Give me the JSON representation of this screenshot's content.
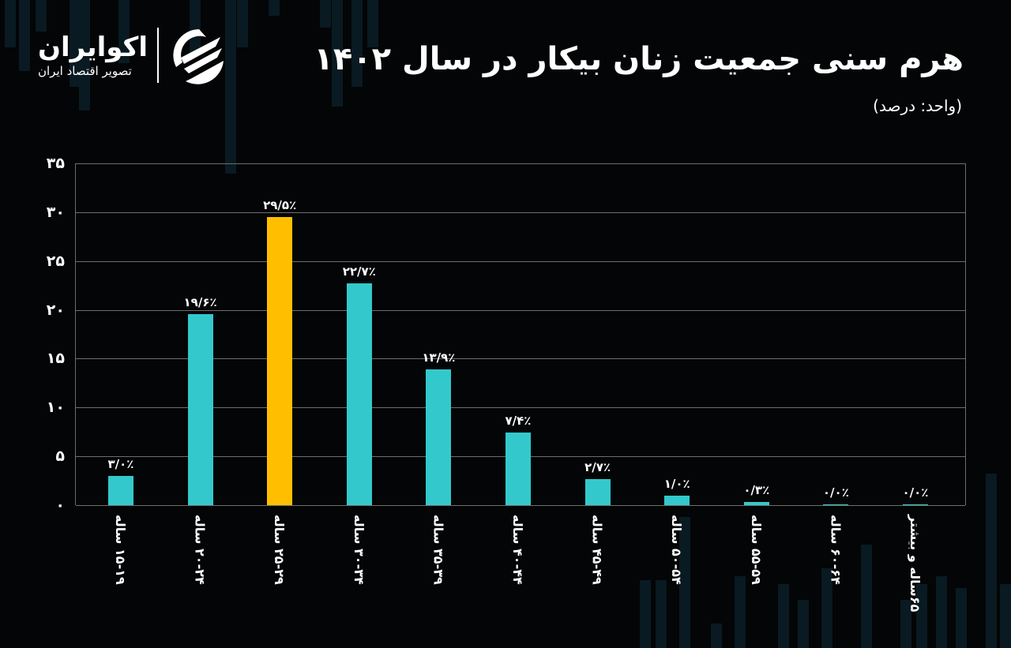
{
  "brand": {
    "name": "اکوایران",
    "subtitle": "تصویر اقتصاد ایران",
    "icon": "ecoiran-swirl-logo-icon"
  },
  "header": {
    "title": "هرم سنی جمعیت زنان بیکار در سال ۱۴۰۲",
    "unit": "(واحد: درصد)"
  },
  "colors": {
    "background": "#040506",
    "bar_default": "#33c9cc",
    "bar_highlight": "#ffbf00",
    "grid": "#6e6e6e",
    "text": "#ffffff"
  },
  "axis": {
    "y_ticks": [
      "۰",
      "۵",
      "۱۰",
      "۱۵",
      "۲۰",
      "۲۵",
      "۳۰",
      "۳۵"
    ]
  },
  "bars": [
    {
      "category": "۱۵-۱۹ ساله",
      "label": "۳/۰٪",
      "value": 3.0,
      "highlight": false
    },
    {
      "category": "۲۰-۲۴ ساله",
      "label": "۱۹/۶٪",
      "value": 19.6,
      "highlight": false
    },
    {
      "category": "۲۵-۲۹ ساله",
      "label": "۲۹/۵٪",
      "value": 29.5,
      "highlight": true
    },
    {
      "category": "۳۰-۳۴ ساله",
      "label": "۲۲/۷٪",
      "value": 22.7,
      "highlight": false
    },
    {
      "category": "۳۵-۳۹ ساله",
      "label": "۱۳/۹٪",
      "value": 13.9,
      "highlight": false
    },
    {
      "category": "۴۰-۴۴ ساله",
      "label": "۷/۴٪",
      "value": 7.4,
      "highlight": false
    },
    {
      "category": "۴۵-۴۹ ساله",
      "label": "۲/۷٪",
      "value": 2.7,
      "highlight": false
    },
    {
      "category": "۵۰-۵۴ ساله",
      "label": "۱/۰٪",
      "value": 1.0,
      "highlight": false
    },
    {
      "category": "۵۵-۵۹ ساله",
      "label": "۰/۳٪",
      "value": 0.3,
      "highlight": false
    },
    {
      "category": "۶۰-۶۴ ساله",
      "label": "۰/۰٪",
      "value": 0.0,
      "highlight": false
    },
    {
      "category": "۶۵ساله و بیشتر",
      "label": "۰/۰٪",
      "value": 0.0,
      "highlight": false
    }
  ],
  "chart_data": {
    "type": "bar",
    "title": "هرم سنی جمعیت زنان بیکار در سال ۱۴۰۲",
    "subtitle": "(واحد: درصد)",
    "xlabel": "",
    "ylabel": "درصد",
    "ylim": [
      0,
      35
    ],
    "y_ticks": [
      0,
      5,
      10,
      15,
      20,
      25,
      30,
      35
    ],
    "grid": true,
    "legend": null,
    "categories": [
      "15-19",
      "20-24",
      "25-29",
      "30-34",
      "35-39",
      "40-44",
      "45-49",
      "50-54",
      "55-59",
      "60-64",
      "65+"
    ],
    "category_labels_fa": [
      "۱۵-۱۹ ساله",
      "۲۰-۲۴ ساله",
      "۲۵-۲۹ ساله",
      "۳۰-۳۴ ساله",
      "۳۵-۳۹ ساله",
      "۴۰-۴۴ ساله",
      "۴۵-۴۹ ساله",
      "۵۰-۵۴ ساله",
      "۵۵-۵۹ ساله",
      "۶۰-۶۴ ساله",
      "۶۵ساله و بیشتر"
    ],
    "values": [
      3.0,
      19.6,
      29.5,
      22.7,
      13.9,
      7.4,
      2.7,
      1.0,
      0.3,
      0.0,
      0.0
    ],
    "data_labels": [
      "۳/۰٪",
      "۱۹/۶٪",
      "۲۹/۵٪",
      "۲۲/۷٪",
      "۱۳/۹٪",
      "۷/۴٪",
      "۲/۷٪",
      "۱/۰٪",
      "۰/۳٪",
      "۰/۰٪",
      "۰/۰٪"
    ],
    "highlighted_category": "25-29"
  }
}
